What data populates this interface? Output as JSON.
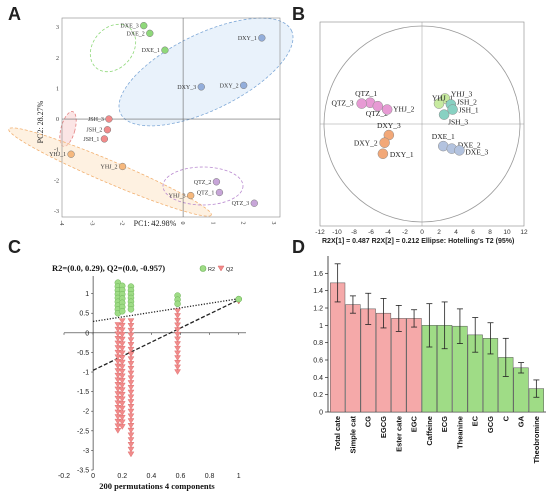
{
  "panels": {
    "a": "A",
    "b": "B",
    "c": "C",
    "d": "D"
  },
  "chart_data": [
    {
      "panel": "A",
      "type": "scatter",
      "xlabel": "PC1: 42.98%",
      "ylabel": "PC2: 28.27%",
      "xlim": [
        -4,
        3.2
      ],
      "ylim": [
        -3.2,
        3.3
      ],
      "xticks": [
        "-4",
        "-3",
        "-2",
        "-1",
        "0",
        "1",
        "2",
        "3"
      ],
      "yticks": [
        "-3",
        "-2",
        "-1",
        "0",
        "1",
        "2",
        "3"
      ],
      "points": [
        {
          "label": "DXE_3",
          "x": -1.3,
          "y": 3.05,
          "color": "#8fd87a"
        },
        {
          "label": "DXE_2",
          "x": -1.1,
          "y": 2.8,
          "color": "#8fd87a"
        },
        {
          "label": "DXE_1",
          "x": -0.6,
          "y": 2.25,
          "color": "#8fd87a"
        },
        {
          "label": "DXY_1",
          "x": 2.6,
          "y": 2.65,
          "color": "#93aedb"
        },
        {
          "label": "DXY_3",
          "x": 0.6,
          "y": 1.05,
          "color": "#93aedb"
        },
        {
          "label": "DXY_2",
          "x": 2.0,
          "y": 1.1,
          "color": "#93aedb"
        },
        {
          "label": "JSH_3",
          "x": -2.45,
          "y": 0.0,
          "color": "#f18a8a"
        },
        {
          "label": "JSH_2",
          "x": -2.5,
          "y": -0.35,
          "color": "#f18a8a"
        },
        {
          "label": "JSH_1",
          "x": -2.6,
          "y": -0.65,
          "color": "#f18a8a"
        },
        {
          "label": "YHJ_1",
          "x": -3.7,
          "y": -1.15,
          "color": "#f6b87d"
        },
        {
          "label": "YHJ_2",
          "x": -2.0,
          "y": -1.55,
          "color": "#f6b87d"
        },
        {
          "label": "YHJ_3",
          "x": 0.25,
          "y": -2.5,
          "color": "#f6b87d"
        },
        {
          "label": "QTZ_2",
          "x": 1.1,
          "y": -2.05,
          "color": "#c7a5d8"
        },
        {
          "label": "QTZ_1",
          "x": 1.2,
          "y": -2.4,
          "color": "#c7a5d8"
        },
        {
          "label": "QTZ_3",
          "x": 2.35,
          "y": -2.75,
          "color": "#c7a5d8"
        }
      ]
    },
    {
      "panel": "B",
      "type": "scatter",
      "xticks": [
        "-12",
        "-10",
        "-8",
        "-6",
        "-4",
        "-2",
        "0",
        "2",
        "4",
        "6",
        "8",
        "10",
        "12"
      ],
      "xlim": [
        -12,
        12
      ],
      "ylim": [
        -12,
        12
      ],
      "footer": "R2X[1] = 0.487   R2X[2] = 0.212   Ellipse: Hotelling's T2 (95%)",
      "points": [
        {
          "label": "QTZ_1",
          "x": -6.1,
          "y": 2.5,
          "color": "#e79ad4"
        },
        {
          "label": "QTZ_3",
          "x": -7.1,
          "y": 2.4,
          "color": "#e79ad4"
        },
        {
          "label": "QTZ_2",
          "x": -5.2,
          "y": 2.1,
          "color": "#e79ad4"
        },
        {
          "label": "YHJ_2",
          "x": -4.1,
          "y": 1.7,
          "color": "#e79ad4"
        },
        {
          "label": "YHJ_3",
          "x": 2.7,
          "y": 3.0,
          "color": "#c7eaa0"
        },
        {
          "label": "YHJ_1",
          "x": 2.0,
          "y": 2.4,
          "color": "#c7eaa0"
        },
        {
          "label": "JSH_2",
          "x": 3.4,
          "y": 2.3,
          "color": "#88d1c2"
        },
        {
          "label": "JSH_1",
          "x": 3.6,
          "y": 1.7,
          "color": "#88d1c2"
        },
        {
          "label": "JSH_3",
          "x": 2.6,
          "y": 1.1,
          "color": "#88d1c2"
        },
        {
          "label": "DXY_3",
          "x": -3.9,
          "y": -1.3,
          "color": "#f2a878"
        },
        {
          "label": "DXY_2",
          "x": -4.4,
          "y": -2.2,
          "color": "#f2a878"
        },
        {
          "label": "DXY_1",
          "x": -4.6,
          "y": -3.5,
          "color": "#f2a878"
        },
        {
          "label": "DXE_1",
          "x": 2.5,
          "y": -2.6,
          "color": "#b3c3df"
        },
        {
          "label": "DXE_2",
          "x": 3.5,
          "y": -2.9,
          "color": "#b3c3df"
        },
        {
          "label": "DXE_3",
          "x": 4.4,
          "y": -3.1,
          "color": "#b3c3df"
        }
      ]
    },
    {
      "panel": "C",
      "type": "scatter",
      "title": "R2=(0.0, 0.29), Q2=(0.0, -0.957)",
      "legend": [
        "R2",
        "Q2"
      ],
      "xlabel": "200 permutations 4 components",
      "xlim": [
        -0.2,
        1.05
      ],
      "ylim": [
        -3.5,
        1.45
      ],
      "xticks": [
        "-0.2",
        "0",
        "0.2",
        "0.4",
        "0.6",
        "0.8",
        "1"
      ],
      "yticks": [
        "1",
        "0.5",
        "0",
        "-0.5",
        "-1",
        "-1.5",
        "-2",
        "-2.5",
        "-3",
        "-3.5"
      ],
      "r2_line": {
        "intercept": 0.29,
        "slope": 0.58
      },
      "q2_line": {
        "intercept": -0.957,
        "slope": 1.8
      },
      "r2_clusters": [
        {
          "x": 0.17,
          "ymin": 0.5,
          "ymax": 1.28
        },
        {
          "x": 0.2,
          "ymin": 0.55,
          "ymax": 1.2
        },
        {
          "x": 0.26,
          "ymin": 0.6,
          "ymax": 1.18
        },
        {
          "x": 0.58,
          "ymin": 0.74,
          "ymax": 0.95
        },
        {
          "x": 1.0,
          "ymin": 0.86,
          "ymax": 0.86
        }
      ],
      "q2_clusters": [
        {
          "x": 0.17,
          "ymin": -2.5,
          "ymax": 0.2
        },
        {
          "x": 0.2,
          "ymin": -2.4,
          "ymax": 0.3
        },
        {
          "x": 0.26,
          "ymin": -3.1,
          "ymax": 0.3
        },
        {
          "x": 0.58,
          "ymin": -1.0,
          "ymax": 0.55
        },
        {
          "x": 1.0,
          "ymin": 0.8,
          "ymax": 0.8
        }
      ]
    },
    {
      "panel": "D",
      "type": "bar",
      "ylim": [
        0,
        1.8
      ],
      "yticks": [
        "0",
        "0.2",
        "0.4",
        "0.6",
        "0.8",
        "1",
        "1.2",
        "1.4",
        "1.6"
      ],
      "categories": [
        "Total cate",
        "Simple cat",
        "CG",
        "EGCG",
        "Ester cate",
        "EGC",
        "Caffeine",
        "ECG",
        "Theanine",
        "EC",
        "GCG",
        "C",
        "GA",
        "Theobromine"
      ],
      "values": [
        1.49,
        1.24,
        1.19,
        1.14,
        1.08,
        1.08,
        1.0,
        1.0,
        0.99,
        0.89,
        0.85,
        0.63,
        0.51,
        0.27
      ],
      "errors": [
        0.22,
        0.1,
        0.18,
        0.17,
        0.15,
        0.1,
        0.25,
        0.27,
        0.2,
        0.2,
        0.18,
        0.22,
        0.06,
        0.1
      ],
      "colors": [
        "#f5a9a9",
        "#f5a9a9",
        "#f5a9a9",
        "#f5a9a9",
        "#f5a9a9",
        "#f5a9a9",
        "#9fdc86",
        "#9fdc86",
        "#9fdc86",
        "#9fdc86",
        "#9fdc86",
        "#9fdc86",
        "#9fdc86",
        "#9fdc86"
      ]
    }
  ]
}
